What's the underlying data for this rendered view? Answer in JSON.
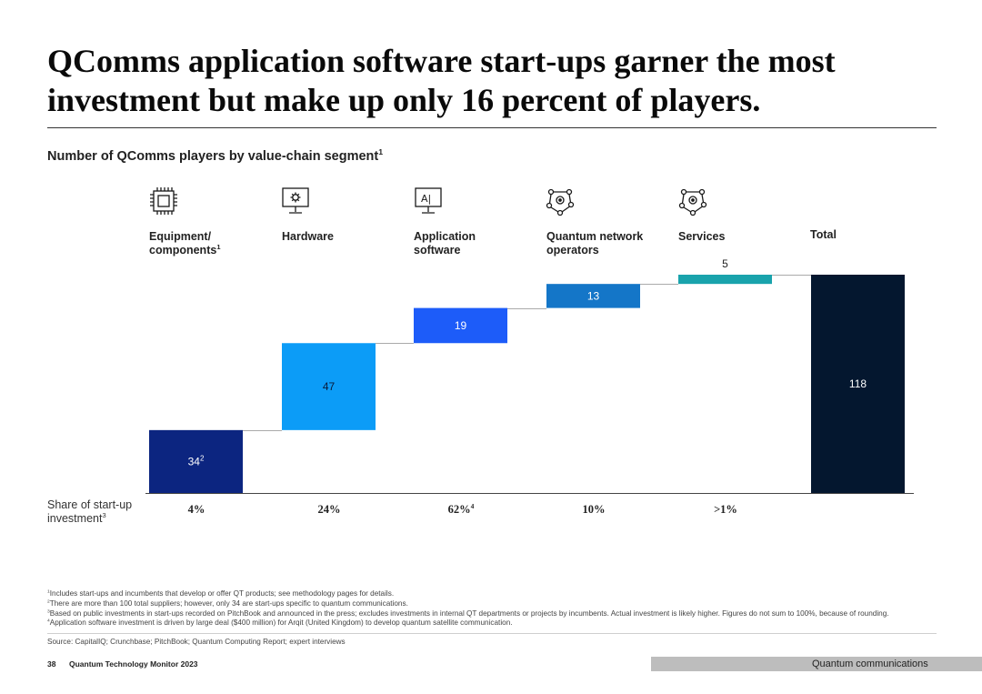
{
  "title": {
    "line1": "QComms application software start-ups garner the most",
    "line2": "investment but make up only 16 percent of players."
  },
  "subtitle": {
    "text": "Number of QComms players by value-chain segment",
    "sup": "1"
  },
  "segments": [
    {
      "label_line1": "Equipment/",
      "label_line2": "components",
      "label_sup": "1",
      "icon": "chip-icon"
    },
    {
      "label_line1": "Hardware",
      "label_line2": "",
      "label_sup": "",
      "icon": "monitor-gear-icon"
    },
    {
      "label_line1": "Application",
      "label_line2": "software",
      "label_sup": "",
      "icon": "ai-monitor-icon"
    },
    {
      "label_line1": "Quantum network",
      "label_line2": "operators",
      "label_sup": "",
      "icon": "network-node-icon"
    },
    {
      "label_line1": "Services",
      "label_line2": "",
      "label_sup": "",
      "icon": "network-node-icon"
    },
    {
      "label_line1": "Total",
      "label_line2": "",
      "label_sup": "",
      "icon": ""
    }
  ],
  "chart_data": {
    "type": "waterfall",
    "title": "Number of QComms players by value-chain segment",
    "categories": [
      "Equipment/components",
      "Hardware",
      "Application software",
      "Quantum network operators",
      "Services",
      "Total"
    ],
    "values": [
      34,
      47,
      19,
      13,
      5,
      118
    ],
    "value_labels": [
      "34",
      "47",
      "19",
      "13",
      "5",
      "118"
    ],
    "label_sups": [
      "2",
      "",
      "",
      "",
      "",
      ""
    ],
    "is_total": [
      false,
      false,
      false,
      false,
      false,
      true
    ],
    "colors": [
      "#0c2580",
      "#0c9cf7",
      "#1d5cf9",
      "#1476c8",
      "#19a3ac",
      "#04172f"
    ],
    "ylim": [
      0,
      118
    ],
    "share_of_startup_investment": [
      "4%",
      "24%",
      "62%",
      "10%",
      ">1%",
      ""
    ],
    "share_sups": [
      "",
      "",
      "4",
      "",
      "",
      ""
    ]
  },
  "share_label": {
    "line1": "Share of start-up",
    "line2": "investment",
    "sup": "3"
  },
  "footnotes": [
    {
      "sup": "1",
      "text": "Includes start-ups and incumbents that develop or offer QT products; see methodology pages for details."
    },
    {
      "sup": "2",
      "text": "There are more than 100 total suppliers; however, only 34 are start-ups specific to quantum communications."
    },
    {
      "sup": "3",
      "text": "Based on public investments in start-ups recorded on PitchBook and announced in the press; excludes investments in internal QT departments or projects by incumbents. Actual investment is likely higher. Figures do not sum to 100%, because of rounding."
    },
    {
      "sup": "4",
      "text": "Application software investment is driven by large deal ($400 million) for Arqit (United Kingdom) to develop quantum satellite communication."
    }
  ],
  "source": "Source: CapitalIQ; Crunchbase; PitchBook; Quantum Computing Report; expert interviews",
  "footer": {
    "page_number": "38",
    "publication": "Quantum Technology Monitor 2023",
    "section": "Quantum communications"
  }
}
